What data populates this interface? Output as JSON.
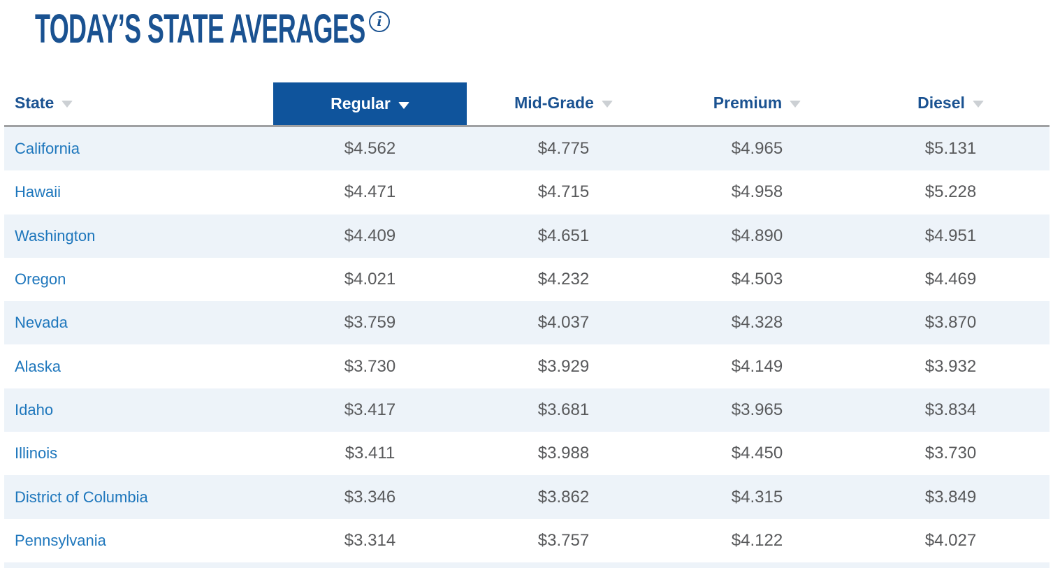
{
  "header": {
    "title": "TODAY’S STATE AVERAGES",
    "info_icon_glyph": "i"
  },
  "table": {
    "columns": [
      {
        "label": "State",
        "sortable": true,
        "selected": false
      },
      {
        "label": "Regular",
        "sortable": true,
        "selected": true
      },
      {
        "label": "Mid-Grade",
        "sortable": true,
        "selected": false
      },
      {
        "label": "Premium",
        "sortable": true,
        "selected": false
      },
      {
        "label": "Diesel",
        "sortable": true,
        "selected": false
      }
    ],
    "rows": [
      {
        "state": "California",
        "regular": "$4.562",
        "midgrade": "$4.775",
        "premium": "$4.965",
        "diesel": "$5.131"
      },
      {
        "state": "Hawaii",
        "regular": "$4.471",
        "midgrade": "$4.715",
        "premium": "$4.958",
        "diesel": "$5.228"
      },
      {
        "state": "Washington",
        "regular": "$4.409",
        "midgrade": "$4.651",
        "premium": "$4.890",
        "diesel": "$4.951"
      },
      {
        "state": "Oregon",
        "regular": "$4.021",
        "midgrade": "$4.232",
        "premium": "$4.503",
        "diesel": "$4.469"
      },
      {
        "state": "Nevada",
        "regular": "$3.759",
        "midgrade": "$4.037",
        "premium": "$4.328",
        "diesel": "$3.870"
      },
      {
        "state": "Alaska",
        "regular": "$3.730",
        "midgrade": "$3.929",
        "premium": "$4.149",
        "diesel": "$3.932"
      },
      {
        "state": "Idaho",
        "regular": "$3.417",
        "midgrade": "$3.681",
        "premium": "$3.965",
        "diesel": "$3.834"
      },
      {
        "state": "Illinois",
        "regular": "$3.411",
        "midgrade": "$3.988",
        "premium": "$4.450",
        "diesel": "$3.730"
      },
      {
        "state": "District of Columbia",
        "regular": "$3.346",
        "midgrade": "$3.862",
        "premium": "$4.315",
        "diesel": "$3.849"
      },
      {
        "state": "Pennsylvania",
        "regular": "$3.314",
        "midgrade": "$3.757",
        "premium": "$4.122",
        "diesel": "$4.027"
      }
    ]
  },
  "colors": {
    "brand_blue": "#1a5291",
    "selected_header_bg": "#0f549c",
    "state_link_blue": "#1d76bc",
    "price_text_gray": "#58595b",
    "alt_row_bg": "#edf3f9",
    "sort_arrow_gray": "#ccd0d4",
    "header_border_gray": "#9fa0a2"
  }
}
